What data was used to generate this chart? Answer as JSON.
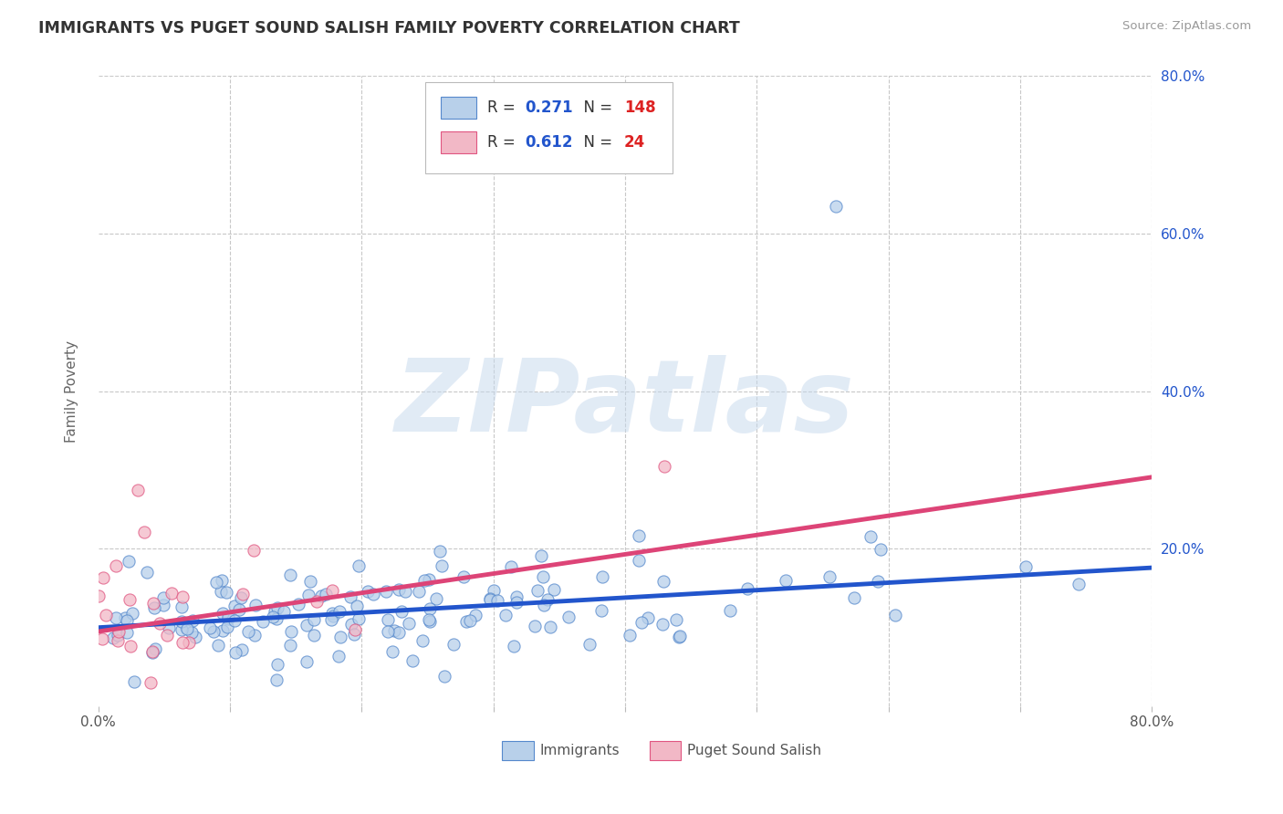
{
  "title": "IMMIGRANTS VS PUGET SOUND SALISH FAMILY POVERTY CORRELATION CHART",
  "source": "Source: ZipAtlas.com",
  "ylabel": "Family Poverty",
  "xlim": [
    0.0,
    0.8
  ],
  "ylim": [
    0.0,
    0.8
  ],
  "blue_R": 0.271,
  "blue_N": 148,
  "pink_R": 0.612,
  "pink_N": 24,
  "blue_color": "#b8d0ea",
  "pink_color": "#f2b8c6",
  "blue_edge_color": "#5588cc",
  "pink_edge_color": "#e05580",
  "blue_line_color": "#2255cc",
  "pink_line_color": "#dd4477",
  "grid_color": "#c8c8c8",
  "watermark": "ZIPatlas",
  "legend_val_color": "#2255cc",
  "legend_n_color": "#dd2222",
  "blue_seed": 42,
  "pink_seed": 7,
  "blue_intercept": 0.1,
  "blue_slope": 0.095,
  "pink_intercept": 0.095,
  "pink_slope": 0.245
}
